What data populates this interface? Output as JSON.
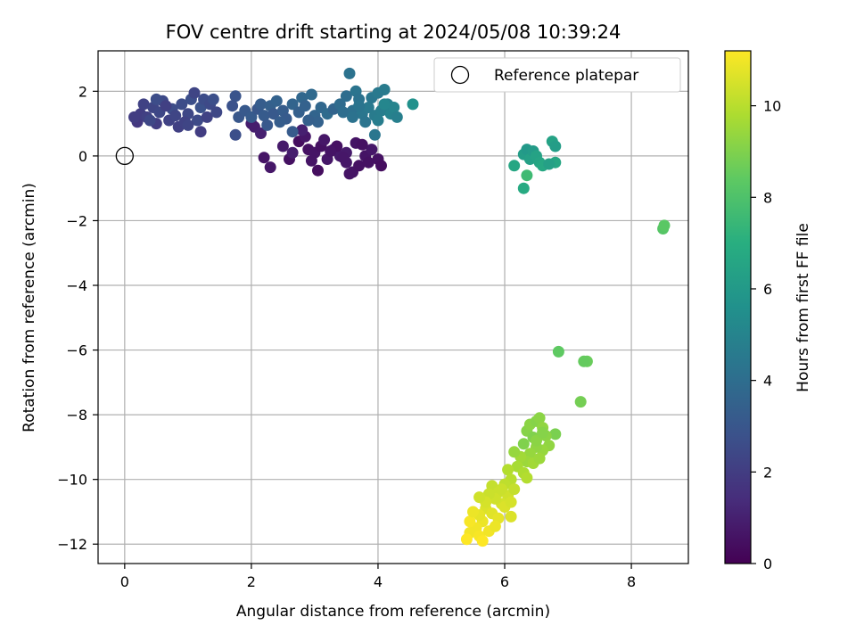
{
  "chart_data": {
    "type": "scatter",
    "title": "FOV centre drift starting at 2024/05/08 10:39:24",
    "xlabel": "Angular distance from reference (arcmin)",
    "ylabel": "Rotation from reference (arcmin)",
    "xlim": [
      -0.42,
      8.9
    ],
    "ylim": [
      -12.6,
      3.25
    ],
    "xticks": [
      0,
      2,
      4,
      6,
      8
    ],
    "yticks": [
      2,
      0,
      -2,
      -4,
      -6,
      -8,
      -10,
      -12
    ],
    "grid": true,
    "colorbar": {
      "label": "Hours from first FF file",
      "range": [
        0,
        11.2
      ],
      "ticks": [
        0,
        2,
        4,
        6,
        8,
        10
      ],
      "colormap": "viridis"
    },
    "legend": {
      "position": "top-right",
      "entries": [
        "Reference platepar"
      ]
    },
    "reference_point": {
      "x": 0,
      "y": 0
    },
    "series": [
      {
        "values": [
          [
            2.75,
            0.45,
            0.4
          ],
          [
            2.9,
            0.2,
            0.5
          ],
          [
            3.0,
            0.1,
            0.6
          ],
          [
            3.1,
            0.3,
            0.5
          ],
          [
            3.2,
            -0.1,
            0.7
          ],
          [
            3.3,
            0.2,
            0.6
          ],
          [
            3.4,
            0.0,
            0.8
          ],
          [
            3.5,
            -0.2,
            0.7
          ],
          [
            3.6,
            -0.5,
            0.6
          ],
          [
            3.7,
            -0.3,
            0.5
          ],
          [
            3.8,
            0.0,
            0.6
          ],
          [
            3.9,
            0.2,
            0.7
          ],
          [
            4.0,
            -0.1,
            0.5
          ],
          [
            4.05,
            -0.3,
            0.4
          ],
          [
            3.65,
            0.4,
            0.6
          ],
          [
            3.75,
            0.35,
            0.5
          ],
          [
            3.5,
            0.1,
            0.8
          ],
          [
            2.95,
            -0.15,
            0.6
          ],
          [
            2.85,
            0.6,
            0.7
          ],
          [
            3.05,
            -0.45,
            0.4
          ],
          [
            2.6,
            -0.1,
            0.5
          ],
          [
            2.2,
            -0.05,
            0.6
          ],
          [
            2.3,
            -0.35,
            0.7
          ],
          [
            2.5,
            0.3,
            0.8
          ],
          [
            2.65,
            0.1,
            0.9
          ],
          [
            3.15,
            0.5,
            0.7
          ],
          [
            3.35,
            0.3,
            0.5
          ],
          [
            3.55,
            -0.55,
            0.6
          ],
          [
            2.05,
            0.9,
            0.9
          ],
          [
            2.15,
            0.7,
            1.0
          ],
          [
            2.0,
            1.0,
            0.9
          ],
          [
            3.25,
            0.15,
            0.6
          ],
          [
            3.85,
            -0.2,
            0.5
          ],
          [
            3.45,
            -0.05,
            0.7
          ],
          [
            2.8,
            0.8,
            1.0
          ]
        ]
      },
      {
        "values": [
          [
            0.2,
            1.05,
            1.8
          ],
          [
            0.25,
            1.3,
            2.0
          ],
          [
            0.3,
            1.6,
            2.2
          ],
          [
            0.35,
            1.2,
            2.1
          ],
          [
            0.45,
            1.5,
            2.3
          ],
          [
            0.5,
            1.0,
            2.0
          ],
          [
            0.55,
            1.35,
            2.4
          ],
          [
            0.6,
            1.7,
            2.5
          ],
          [
            0.7,
            1.1,
            2.2
          ],
          [
            0.75,
            1.45,
            2.6
          ],
          [
            0.8,
            1.25,
            2.3
          ],
          [
            0.85,
            0.9,
            2.1
          ],
          [
            0.9,
            1.6,
            2.6
          ],
          [
            1.0,
            1.3,
            2.4
          ],
          [
            1.05,
            1.75,
            2.7
          ],
          [
            1.1,
            1.95,
            2.3
          ],
          [
            1.15,
            1.1,
            2.5
          ],
          [
            1.2,
            1.5,
            2.8
          ],
          [
            1.25,
            1.75,
            2.6
          ],
          [
            1.3,
            1.2,
            2.2
          ],
          [
            1.35,
            1.6,
            2.5
          ],
          [
            1.45,
            1.35,
            2.4
          ],
          [
            1.2,
            0.75,
            2.0
          ],
          [
            0.4,
            1.1,
            2.4
          ],
          [
            0.65,
            1.55,
            2.1
          ],
          [
            0.95,
            1.05,
            2.2
          ],
          [
            1.4,
            1.75,
            2.7
          ],
          [
            1.0,
            0.95,
            2.3
          ],
          [
            0.15,
            1.2,
            2.0
          ],
          [
            0.5,
            1.75,
            2.6
          ]
        ]
      },
      {
        "values": [
          [
            1.75,
            1.85,
            2.9
          ],
          [
            1.8,
            1.2,
            3.0
          ],
          [
            1.75,
            0.65,
            2.7
          ],
          [
            1.9,
            1.4,
            3.1
          ],
          [
            2.0,
            1.2,
            3.2
          ],
          [
            2.1,
            1.45,
            3.0
          ],
          [
            2.15,
            1.6,
            3.3
          ],
          [
            2.2,
            1.25,
            3.2
          ],
          [
            2.3,
            1.55,
            3.4
          ],
          [
            2.35,
            1.3,
            3.1
          ],
          [
            2.4,
            1.7,
            3.5
          ],
          [
            2.5,
            1.4,
            3.3
          ],
          [
            2.55,
            1.15,
            3.2
          ],
          [
            2.65,
            1.6,
            3.6
          ],
          [
            2.75,
            1.35,
            3.4
          ],
          [
            2.8,
            1.8,
            3.7
          ],
          [
            2.85,
            1.55,
            3.5
          ],
          [
            2.95,
            1.9,
            3.8
          ],
          [
            3.0,
            1.25,
            3.6
          ],
          [
            3.1,
            1.5,
            3.7
          ],
          [
            3.2,
            1.3,
            3.9
          ],
          [
            3.3,
            1.45,
            3.6
          ],
          [
            3.05,
            1.05,
            3.5
          ],
          [
            2.45,
            1.05,
            3.3
          ],
          [
            2.65,
            0.75,
            3.2
          ],
          [
            1.7,
            1.55,
            2.8
          ],
          [
            2.25,
            0.95,
            3.1
          ],
          [
            2.9,
            1.1,
            3.4
          ]
        ]
      },
      {
        "values": [
          [
            3.4,
            1.6,
            3.9
          ],
          [
            3.5,
            1.85,
            4.0
          ],
          [
            3.55,
            2.55,
            4.2
          ],
          [
            3.6,
            1.4,
            4.1
          ],
          [
            3.65,
            2.0,
            4.3
          ],
          [
            3.7,
            1.75,
            4.2
          ],
          [
            3.75,
            1.3,
            4.4
          ],
          [
            3.8,
            1.05,
            4.3
          ],
          [
            3.85,
            1.5,
            4.5
          ],
          [
            3.9,
            1.8,
            4.4
          ],
          [
            3.95,
            1.25,
            4.6
          ],
          [
            4.0,
            1.95,
            4.5
          ],
          [
            4.05,
            1.4,
            4.7
          ],
          [
            4.1,
            2.05,
            4.6
          ],
          [
            4.15,
            1.6,
            4.8
          ],
          [
            4.2,
            1.3,
            4.9
          ],
          [
            4.25,
            1.5,
            5.0
          ],
          [
            4.3,
            1.2,
            4.8
          ],
          [
            3.95,
            0.65,
            4.4
          ],
          [
            3.45,
            1.35,
            4.0
          ],
          [
            4.0,
            1.1,
            4.7
          ],
          [
            4.1,
            1.6,
            5.1
          ],
          [
            3.7,
            1.55,
            4.3
          ],
          [
            4.55,
            1.6,
            5.6
          ],
          [
            3.6,
            1.2,
            4.2
          ]
        ]
      },
      {
        "values": [
          [
            6.15,
            -0.3,
            6.6
          ],
          [
            6.3,
            0.05,
            6.2
          ],
          [
            6.35,
            0.2,
            6.0
          ],
          [
            6.4,
            -0.1,
            6.3
          ],
          [
            6.45,
            0.15,
            6.1
          ],
          [
            6.5,
            0.0,
            6.4
          ],
          [
            6.55,
            -0.2,
            6.5
          ],
          [
            6.6,
            -0.3,
            6.7
          ],
          [
            6.3,
            -1.0,
            6.8
          ],
          [
            6.75,
            0.45,
            6.4
          ],
          [
            6.8,
            -0.2,
            6.6
          ],
          [
            6.8,
            0.3,
            6.2
          ],
          [
            6.35,
            -0.6,
            7.6
          ],
          [
            6.7,
            -0.25,
            6.3
          ]
        ]
      },
      {
        "values": [
          [
            8.5,
            -2.25,
            8.2
          ],
          [
            8.52,
            -2.15,
            8.3
          ],
          [
            6.85,
            -6.05,
            8.4
          ],
          [
            7.3,
            -6.35,
            8.6
          ],
          [
            7.25,
            -6.35,
            8.5
          ],
          [
            7.2,
            -7.6,
            8.8
          ],
          [
            6.8,
            -8.6,
            8.9
          ]
        ]
      },
      {
        "values": [
          [
            6.3,
            -8.9,
            9.0
          ],
          [
            6.35,
            -8.5,
            9.1
          ],
          [
            6.4,
            -8.3,
            9.2
          ],
          [
            6.45,
            -8.7,
            9.0
          ],
          [
            6.5,
            -8.2,
            9.1
          ],
          [
            6.55,
            -8.1,
            9.2
          ],
          [
            6.6,
            -8.4,
            9.3
          ],
          [
            6.65,
            -8.65,
            9.2
          ],
          [
            6.7,
            -8.95,
            9.3
          ],
          [
            6.6,
            -9.1,
            9.4
          ],
          [
            6.5,
            -9.0,
            9.3
          ],
          [
            6.4,
            -9.2,
            9.4
          ],
          [
            6.35,
            -9.45,
            9.5
          ],
          [
            6.25,
            -9.3,
            9.6
          ],
          [
            6.2,
            -9.6,
            9.7
          ],
          [
            6.3,
            -9.8,
            9.8
          ],
          [
            6.45,
            -9.5,
            9.6
          ],
          [
            6.55,
            -9.35,
            9.5
          ],
          [
            6.15,
            -9.15,
            9.4
          ],
          [
            6.05,
            -9.7,
            9.9
          ],
          [
            6.1,
            -10.0,
            10.0
          ],
          [
            6.35,
            -9.95,
            9.9
          ],
          [
            6.5,
            -8.8,
            9.2
          ],
          [
            6.6,
            -8.55,
            9.1
          ]
        ]
      },
      {
        "values": [
          [
            5.8,
            -10.2,
            10.2
          ],
          [
            5.9,
            -10.4,
            10.3
          ],
          [
            6.0,
            -10.15,
            10.1
          ],
          [
            6.05,
            -10.5,
            10.4
          ],
          [
            5.95,
            -10.75,
            10.5
          ],
          [
            5.85,
            -10.6,
            10.4
          ],
          [
            5.75,
            -10.45,
            10.3
          ],
          [
            5.7,
            -10.9,
            10.6
          ],
          [
            5.8,
            -11.05,
            10.7
          ],
          [
            5.9,
            -11.2,
            10.8
          ],
          [
            6.1,
            -11.15,
            10.6
          ],
          [
            5.65,
            -11.3,
            10.9
          ],
          [
            5.6,
            -11.1,
            10.8
          ],
          [
            5.55,
            -11.5,
            11.0
          ],
          [
            5.45,
            -11.3,
            11.1
          ],
          [
            5.45,
            -11.65,
            11.0
          ],
          [
            5.4,
            -11.85,
            11.2
          ],
          [
            5.6,
            -11.75,
            11.1
          ],
          [
            5.75,
            -11.6,
            11.0
          ],
          [
            5.85,
            -11.45,
            10.9
          ],
          [
            6.0,
            -10.85,
            10.6
          ],
          [
            6.15,
            -10.3,
            10.2
          ],
          [
            6.1,
            -10.7,
            10.5
          ],
          [
            5.7,
            -10.7,
            10.5
          ],
          [
            5.6,
            -10.55,
            10.4
          ],
          [
            5.95,
            -10.3,
            10.3
          ],
          [
            5.5,
            -11.0,
            10.9
          ],
          [
            5.65,
            -11.9,
            11.2
          ]
        ]
      }
    ]
  }
}
